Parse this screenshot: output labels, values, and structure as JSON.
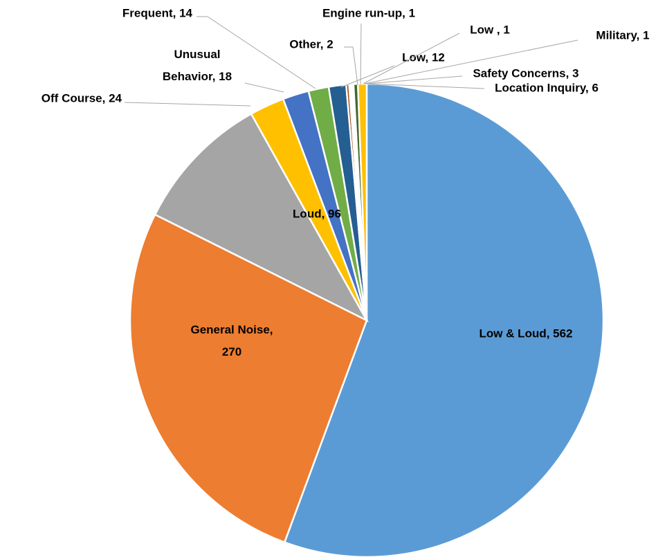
{
  "chart_data": {
    "type": "pie",
    "values": [
      562,
      270,
      96,
      24,
      18,
      14,
      12,
      2,
      1,
      1,
      1,
      3,
      6
    ],
    "value_labels": [
      "Low & Loud, 562",
      "General Noise, 270",
      "Loud, 96",
      "Off Course, 24",
      "Unusual Behavior, 18",
      "Frequent, 14",
      "Low, 12",
      "Other, 2",
      "Engine run-up, 1",
      "Low  , 1",
      "Military, 1",
      "Safety Concerns, 3",
      "Location Inquiry, 6"
    ],
    "colors": [
      "#5b9bd5",
      "#ed7d31",
      "#a5a5a5",
      "#ffc000",
      "#4472c4",
      "#70ad47",
      "#255e91",
      "#9e480e",
      "#636363",
      "#997300",
      "#264478",
      "#43682b",
      "#ffc000"
    ]
  }
}
